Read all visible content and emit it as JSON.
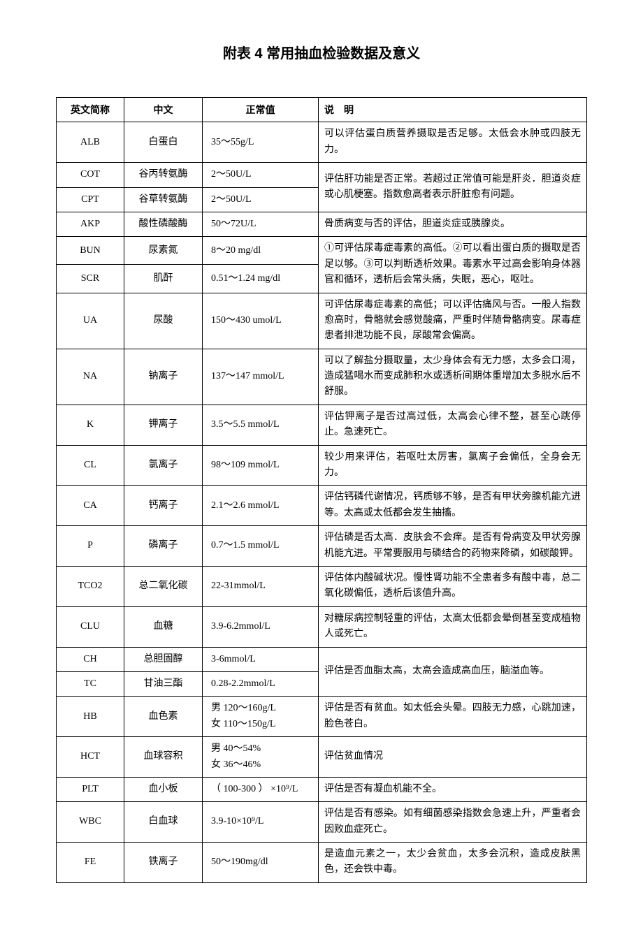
{
  "title": "附表 4 常用抽血检验数据及意义",
  "headers": {
    "abbr": "英文简称",
    "cn": "中文",
    "range": "正常值",
    "desc": "说　明"
  },
  "rows": [
    {
      "abbr": "ALB",
      "cn": "白蛋白",
      "range": "35～55g/L",
      "desc": "可以评估蛋白质营养摄取是否足够。太低会水肿或四肢无力。",
      "rs": 1
    },
    {
      "abbr": "COT",
      "cn": "谷丙转氨酶",
      "range": "2～50U/L",
      "desc": "评估肝功能是否正常。若超过正常值可能是肝炎．胆道炎症或心肌梗塞。指数愈高者表示肝脏愈有问题。",
      "rs": 2
    },
    {
      "abbr": "CPT",
      "cn": "谷草转氨酶",
      "range": "2～50U/L",
      "desc": "",
      "rs": 0
    },
    {
      "abbr": "AKP",
      "cn": "酸性磷酸酶",
      "range": "50～72U/L",
      "desc": "骨质病变与否的评估，胆道炎症或胰腺炎。",
      "rs": 1
    },
    {
      "abbr": "BUN",
      "cn": "尿素氮",
      "range": "8～20 mg/dl",
      "desc": "①可评估尿毒症毒素的高低。②可以看出蛋白质的摄取是否足以够。③可以判断透析效果。毒素水平过高会影响身体器官和循环，透析后会常头痛，失眠，恶心，呕吐。",
      "rs": 2
    },
    {
      "abbr": "SCR",
      "cn": "肌酐",
      "range": "0.51～1.24 mg/dl",
      "desc": "",
      "rs": 0
    },
    {
      "abbr": "UA",
      "cn": "尿酸",
      "range": "150～430 umol/L",
      "desc": "可评估尿毒症毒素的高低；可以评估痛风与否。一般人指数愈高时，骨骼就会感觉酸痛，严重时伴随骨骼病变。尿毒症患者排泄功能不良，尿酸常会偏高。",
      "rs": 1
    },
    {
      "abbr": "NA",
      "cn": "钠离子",
      "range": "137～147 mmol/L",
      "desc": "可以了解盐分摄取量，太少身体会有无力感，太多会口渴，造成猛喝水而变成肺积水或透析间期体重增加太多脱水后不舒服。",
      "rs": 1
    },
    {
      "abbr": "K",
      "cn": "钾离子",
      "range": "3.5～5.5 mmol/L",
      "desc": "评估钾离子是否过高过低，太高会心律不整，甚至心跳停止。急速死亡。",
      "rs": 1
    },
    {
      "abbr": "CL",
      "cn": "氯离子",
      "range": "98～109 mmol/L",
      "desc": "较少用来评估，若呕吐太厉害，氯离子会偏低，全身会无力。",
      "rs": 1
    },
    {
      "abbr": "CA",
      "cn": "钙离子",
      "range": "2.1～2.6 mmol/L",
      "desc": "评估钙磷代谢情况，钙质够不够，是否有甲状旁腺机能亢进等。太高或太低都会发生抽搐。",
      "rs": 1
    },
    {
      "abbr": "P",
      "cn": "磷离子",
      "range": "0.7～1.5 mmol/L",
      "desc": "评估磷是否太高．皮肤会不会痒。是否有骨病变及甲状旁腺机能亢进。平常要服用与磷结合的药物来降磷，如碳酸钾。",
      "rs": 1
    },
    {
      "abbr": "TCO2",
      "cn": "总二氧化碳",
      "range": "22-31mmol/L",
      "desc": "评估体内酸碱状况。慢性肾功能不全患者多有酸中毒，总二氧化碳偏低，透析后该值升高。",
      "rs": 1
    },
    {
      "abbr": "CLU",
      "cn": "血糖",
      "range": "3.9-6.2mmol/L",
      "desc": "对糖尿病控制轻重的评估，太高太低都会晕倒甚至变成植物人或死亡。",
      "rs": 1
    },
    {
      "abbr": "CH",
      "cn": "总胆固醇",
      "range": "3-6mmol/L",
      "desc": "评估是否血脂太高，太高会造成高血压，脑溢血等。",
      "rs": 2
    },
    {
      "abbr": "TC",
      "cn": "甘油三酯",
      "range": "0.28-2.2mmol/L",
      "desc": "",
      "rs": 0
    },
    {
      "abbr": "HB",
      "cn": "血色素",
      "range": "男 120～160g/L\n女 110～150g/L",
      "desc": "评估是否有贫血。如太低会头晕。四肢无力感，心跳加速，脸色苍白。",
      "rs": 1
    },
    {
      "abbr": "HCT",
      "cn": "血球容积",
      "range": "男 40～54%\n女 36～46%",
      "desc": "评估贫血情况",
      "rs": 1
    },
    {
      "abbr": "PLT",
      "cn": "血小板",
      "range": "（ 100-300 ） ×10⁹/L",
      "desc": "评估是否有凝血机能不全。",
      "rs": 1
    },
    {
      "abbr": "WBC",
      "cn": "白血球",
      "range": "3.9-10×10⁹/L",
      "desc": "评估是否有感染。如有细菌感染指数会急速上升，严重者会因败血症死亡。",
      "rs": 1
    },
    {
      "abbr": "FE",
      "cn": "铁离子",
      "range": "50～190mg/dl",
      "desc": "是造血元素之一，太少会贫血，太多会沉积，造成皮肤黑色，还会铁中毒。",
      "rs": 1
    }
  ]
}
